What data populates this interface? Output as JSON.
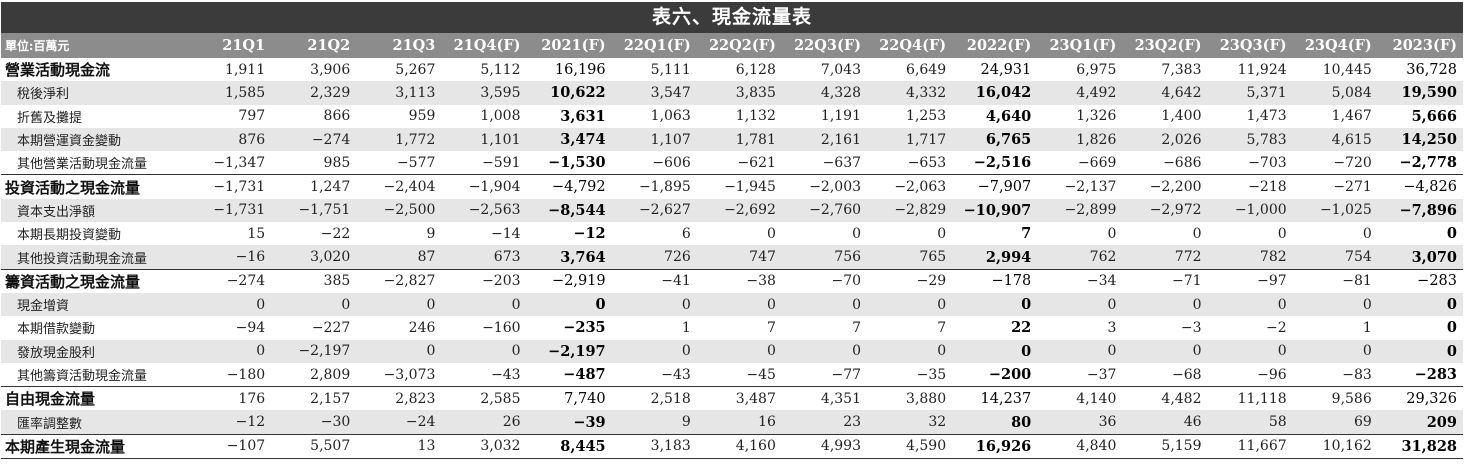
{
  "title": "表六、現金流量表",
  "unit": "單位:百萬元",
  "columns": [
    "21Q1",
    "21Q2",
    "21Q3",
    "21Q4(F)",
    "2021(F)",
    "22Q1(F)",
    "22Q2(F)",
    "22Q3(F)",
    "22Q4(F)",
    "2022(F)",
    "23Q1(F)",
    "23Q2(F)",
    "23Q3(F)",
    "23Q4(F)",
    "2023(F)"
  ],
  "rows": [
    {
      "label": "營業活動現金流",
      "type": "section",
      "values": [
        "1,911",
        "3,906",
        "5,267",
        "5,112",
        "16,196",
        "5,111",
        "6,128",
        "7,043",
        "6,649",
        "24,931",
        "6,975",
        "7,383",
        "11,924",
        "10,445",
        "36,728"
      ]
    },
    {
      "label": "稅後淨利",
      "type": "item",
      "values": [
        "1,585",
        "2,329",
        "3,113",
        "3,595",
        "10,622",
        "3,547",
        "3,835",
        "4,328",
        "4,332",
        "16,042",
        "4,492",
        "4,642",
        "5,371",
        "5,084",
        "19,590"
      ]
    },
    {
      "label": "折舊及攤提",
      "type": "item",
      "values": [
        "797",
        "866",
        "959",
        "1,008",
        "3,631",
        "1,063",
        "1,132",
        "1,191",
        "1,253",
        "4,640",
        "1,326",
        "1,400",
        "1,473",
        "1,467",
        "5,666"
      ]
    },
    {
      "label": "本期營運資金變動",
      "type": "item",
      "values": [
        "876",
        "-274",
        "1,772",
        "1,101",
        "3,474",
        "1,107",
        "1,781",
        "2,161",
        "1,717",
        "6,765",
        "1,826",
        "2,026",
        "5,783",
        "4,615",
        "14,250"
      ]
    },
    {
      "label": "其他營業活動現金流量",
      "type": "item",
      "values": [
        "-1,347",
        "985",
        "-577",
        "-591",
        "-1,530",
        "-606",
        "-621",
        "-637",
        "-653",
        "-2,516",
        "-669",
        "-686",
        "-703",
        "-720",
        "-2,778"
      ]
    },
    {
      "label": "投資活動之現金流量",
      "type": "section",
      "values": [
        "-1,731",
        "1,247",
        "-2,404",
        "-1,904",
        "-4,792",
        "-1,895",
        "-1,945",
        "-2,003",
        "-2,063",
        "-7,907",
        "-2,137",
        "-2,200",
        "-218",
        "-271",
        "-4,826"
      ]
    },
    {
      "label": "資本支出淨額",
      "type": "item",
      "values": [
        "-1,731",
        "-1,751",
        "-2,500",
        "-2,563",
        "-8,544",
        "-2,627",
        "-2,692",
        "-2,760",
        "-2,829",
        "-10,907",
        "-2,899",
        "-2,972",
        "-1,000",
        "-1,025",
        "-7,896"
      ]
    },
    {
      "label": "本期長期投資變動",
      "type": "item",
      "values": [
        "15",
        "-22",
        "9",
        "-14",
        "-12",
        "6",
        "0",
        "0",
        "0",
        "7",
        "0",
        "0",
        "0",
        "0",
        "0"
      ]
    },
    {
      "label": "其他投資活動現金流量",
      "type": "item",
      "values": [
        "-16",
        "3,020",
        "87",
        "673",
        "3,764",
        "726",
        "747",
        "756",
        "765",
        "2,994",
        "762",
        "772",
        "782",
        "754",
        "3,070"
      ]
    },
    {
      "label": "籌資活動之現金流量",
      "type": "section",
      "values": [
        "-274",
        "385",
        "-2,827",
        "-203",
        "-2,919",
        "-41",
        "-38",
        "-70",
        "-29",
        "-178",
        "-34",
        "-71",
        "-97",
        "-81",
        "-283"
      ]
    },
    {
      "label": "現金增資",
      "type": "item",
      "values": [
        "0",
        "0",
        "0",
        "0",
        "0",
        "0",
        "0",
        "0",
        "0",
        "0",
        "0",
        "0",
        "0",
        "0",
        "0"
      ]
    },
    {
      "label": "本期借款變動",
      "type": "item",
      "values": [
        "-94",
        "-227",
        "246",
        "-160",
        "-235",
        "1",
        "7",
        "7",
        "7",
        "22",
        "3",
        "-3",
        "-2",
        "1",
        "0"
      ]
    },
    {
      "label": "發放現金股利",
      "type": "item",
      "values": [
        "0",
        "-2,197",
        "0",
        "0",
        "-2,197",
        "0",
        "0",
        "0",
        "0",
        "0",
        "0",
        "0",
        "0",
        "0",
        "0"
      ]
    },
    {
      "label": "其他籌資活動現金流量",
      "type": "item",
      "values": [
        "-180",
        "2,809",
        "-3,073",
        "-43",
        "-487",
        "-43",
        "-45",
        "-77",
        "-35",
        "-200",
        "-37",
        "-68",
        "-96",
        "-83",
        "-283"
      ]
    },
    {
      "label": "自由現金流量",
      "type": "section",
      "values": [
        "176",
        "2,157",
        "2,823",
        "2,585",
        "7,740",
        "2,518",
        "3,487",
        "4,351",
        "3,880",
        "14,237",
        "4,140",
        "4,482",
        "11,118",
        "9,586",
        "29,326"
      ]
    },
    {
      "label": "匯率調整數",
      "type": "item",
      "values": [
        "-12",
        "-30",
        "-24",
        "26",
        "-39",
        "9",
        "16",
        "23",
        "32",
        "80",
        "36",
        "46",
        "58",
        "69",
        "209"
      ]
    },
    {
      "label": "本期產生現金流量",
      "type": "last",
      "values": [
        "-107",
        "5,507",
        "13",
        "3,032",
        "8,445",
        "3,183",
        "4,160",
        "4,993",
        "4,590",
        "16,926",
        "4,840",
        "5,159",
        "11,667",
        "10,162",
        "31,828"
      ]
    }
  ]
}
